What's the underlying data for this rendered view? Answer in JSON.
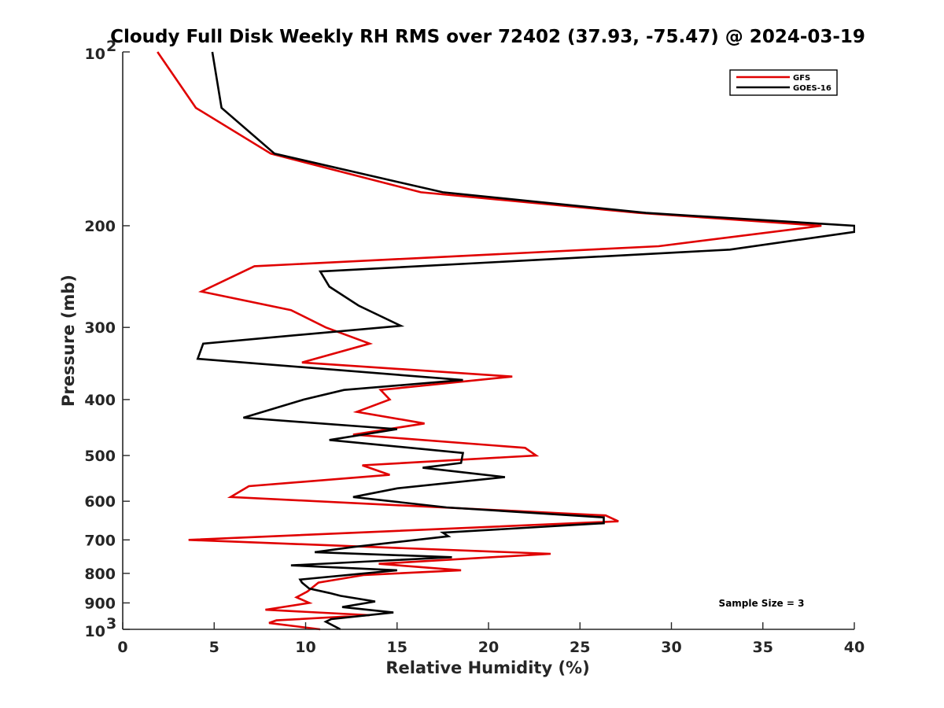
{
  "chart_data": {
    "type": "line",
    "title": "Cloudy Full Disk Weekly RH RMS over 72402 (37.93, -75.47) @ 2024-03-19",
    "xlabel": "Relative Humidity (%)",
    "ylabel": "Pressure (mb)",
    "xlim": [
      0,
      40
    ],
    "ylim": [
      100,
      1000
    ],
    "y_scale": "log",
    "y_reversed": true,
    "xticks": [
      0,
      5,
      10,
      15,
      20,
      25,
      30,
      35,
      40
    ],
    "yticks": [
      {
        "value": 100,
        "base": "10",
        "exp": "2"
      },
      {
        "value": 200,
        "label": "200"
      },
      {
        "value": 300,
        "label": "300"
      },
      {
        "value": 400,
        "label": "400"
      },
      {
        "value": 500,
        "label": "500"
      },
      {
        "value": 600,
        "label": "600"
      },
      {
        "value": 700,
        "label": "700"
      },
      {
        "value": 800,
        "label": "800"
      },
      {
        "value": 900,
        "label": "900"
      },
      {
        "value": 1000,
        "base": "10",
        "exp": "3"
      }
    ],
    "grid": false,
    "legend_position": "top-right",
    "annotation": "Sample Size = 3",
    "series": [
      {
        "name": "GFS",
        "color": "#e00000",
        "points": [
          [
            1.9,
            100
          ],
          [
            4.0,
            125
          ],
          [
            8.1,
            150
          ],
          [
            16.3,
            175
          ],
          [
            28.2,
            190
          ],
          [
            38.2,
            200
          ],
          [
            29.3,
            217
          ],
          [
            7.2,
            235
          ],
          [
            4.3,
            260
          ],
          [
            9.2,
            280
          ],
          [
            11.1,
            300
          ],
          [
            13.5,
            320
          ],
          [
            9.8,
            345
          ],
          [
            21.3,
            365
          ],
          [
            14.1,
            385
          ],
          [
            14.6,
            400
          ],
          [
            12.8,
            420
          ],
          [
            16.5,
            440
          ],
          [
            12.6,
            460
          ],
          [
            22.0,
            485
          ],
          [
            22.6,
            500
          ],
          [
            13.1,
            520
          ],
          [
            14.6,
            540
          ],
          [
            6.9,
            565
          ],
          [
            5.9,
            590
          ],
          [
            26.4,
            635
          ],
          [
            27.1,
            650
          ],
          [
            3.6,
            700
          ],
          [
            23.4,
            740
          ],
          [
            14.0,
            770
          ],
          [
            18.5,
            790
          ],
          [
            13.2,
            805
          ],
          [
            10.7,
            830
          ],
          [
            10.1,
            860
          ],
          [
            9.5,
            880
          ],
          [
            10.2,
            900
          ],
          [
            7.8,
            925
          ],
          [
            13.5,
            945
          ],
          [
            8.4,
            965
          ],
          [
            8.0,
            975
          ],
          [
            10.8,
            1000
          ]
        ]
      },
      {
        "name": "GOES-16",
        "color": "#000000",
        "points": [
          [
            4.9,
            100
          ],
          [
            5.4,
            125
          ],
          [
            8.3,
            150
          ],
          [
            17.5,
            175
          ],
          [
            28.6,
            190
          ],
          [
            40.0,
            200
          ],
          [
            40.0,
            205
          ],
          [
            33.2,
            220
          ],
          [
            10.8,
            240
          ],
          [
            11.3,
            255
          ],
          [
            12.9,
            275
          ],
          [
            15.2,
            298
          ],
          [
            4.4,
            320
          ],
          [
            4.1,
            340
          ],
          [
            18.6,
            370
          ],
          [
            12.1,
            385
          ],
          [
            9.9,
            400
          ],
          [
            6.6,
            430
          ],
          [
            15.0,
            450
          ],
          [
            11.3,
            470
          ],
          [
            18.6,
            495
          ],
          [
            18.5,
            515
          ],
          [
            16.4,
            525
          ],
          [
            20.9,
            545
          ],
          [
            15.0,
            570
          ],
          [
            12.6,
            590
          ],
          [
            17.7,
            615
          ],
          [
            26.3,
            640
          ],
          [
            26.3,
            655
          ],
          [
            17.5,
            680
          ],
          [
            17.8,
            690
          ],
          [
            12.6,
            720
          ],
          [
            10.5,
            735
          ],
          [
            18.0,
            750
          ],
          [
            9.2,
            775
          ],
          [
            15.0,
            790
          ],
          [
            9.7,
            820
          ],
          [
            9.8,
            830
          ],
          [
            10.2,
            850
          ],
          [
            11.3,
            865
          ],
          [
            11.9,
            875
          ],
          [
            13.8,
            895
          ],
          [
            12.0,
            915
          ],
          [
            14.8,
            935
          ],
          [
            11.4,
            960
          ],
          [
            11.1,
            970
          ],
          [
            11.9,
            1000
          ]
        ]
      }
    ]
  }
}
